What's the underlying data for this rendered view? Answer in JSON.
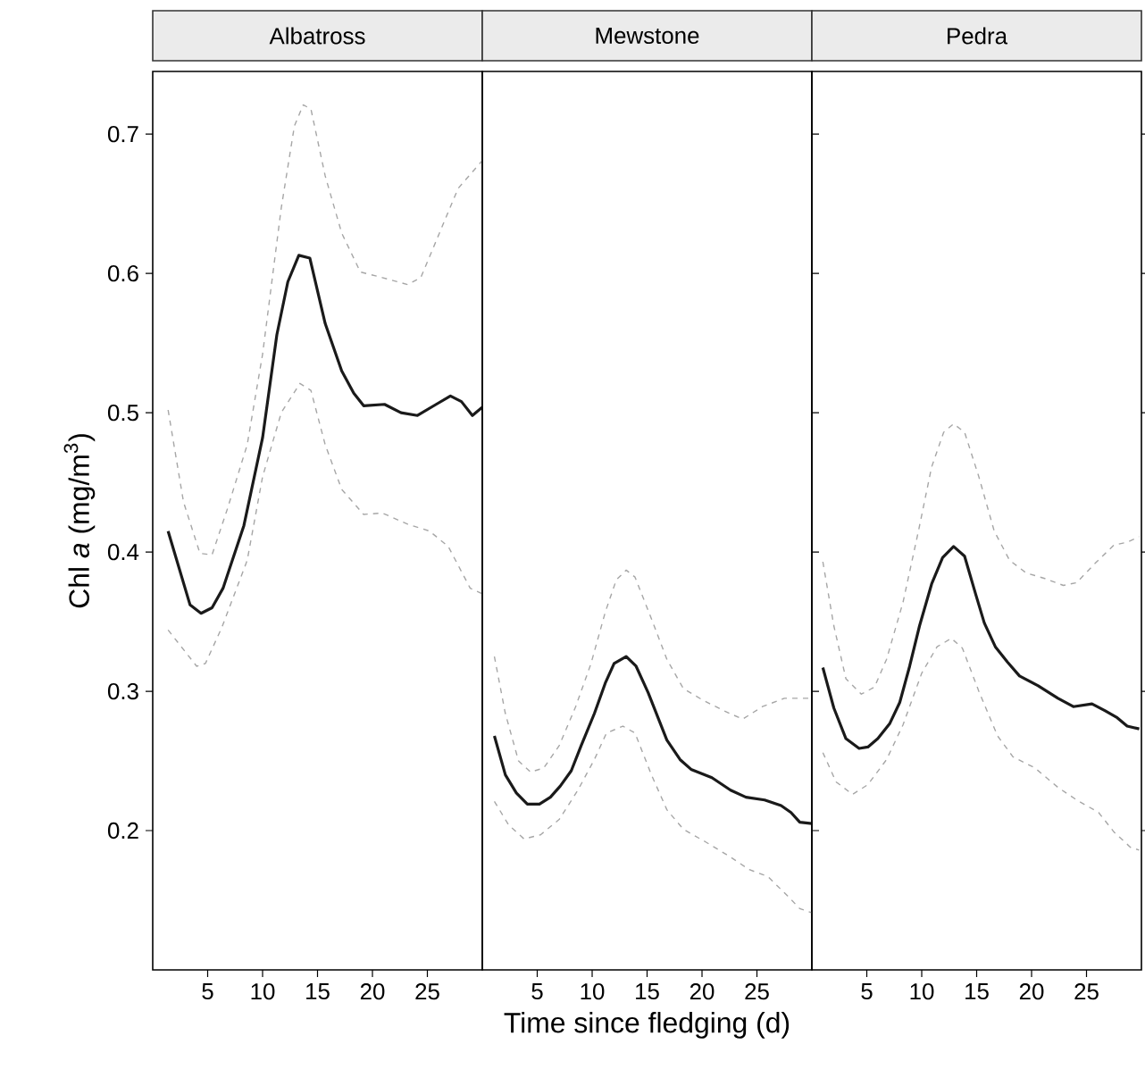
{
  "chart_data": [
    {
      "type": "line",
      "title": "Albatross",
      "ylabel": "Chl *a* (mg/m$^{3}$)",
      "xlim": [
        0,
        30
      ],
      "xticks": [
        5,
        10,
        15,
        20,
        25
      ],
      "ylim": [
        0.1,
        0.745
      ],
      "yticks": [
        0.2,
        0.3,
        0.4,
        0.5,
        0.6,
        0.7
      ],
      "grid": false,
      "series": [
        {
          "color": "#1a1a1a",
          "line_style": "solid",
          "x": [
            1.4,
            3.4,
            4.4,
            5.4,
            6.4,
            8.3,
            10,
            11.3,
            12.3,
            13.3,
            14.3,
            15.7,
            17.2,
            18.3,
            19.2,
            21.1,
            22.6,
            24.1,
            25.8,
            27.1,
            28.1,
            29.1,
            30
          ],
          "values": [
            0.415,
            0.362,
            0.356,
            0.36,
            0.374,
            0.419,
            0.482,
            0.556,
            0.594,
            0.613,
            0.611,
            0.564,
            0.53,
            0.514,
            0.505,
            0.506,
            0.5,
            0.498,
            0.506,
            0.512,
            0.508,
            0.498,
            0.504
          ]
        },
        {
          "color": "#a6a6a6",
          "line_style": "dashed",
          "x": [
            1.4,
            2.8,
            4.3,
            5.4,
            6.8,
            8.6,
            10,
            11.7,
            12.9,
            13.7,
            14.4,
            15.7,
            17.2,
            18.9,
            20.9,
            23.2,
            24.4,
            26.1,
            27.8,
            30
          ],
          "values": [
            0.502,
            0.436,
            0.399,
            0.398,
            0.431,
            0.477,
            0.542,
            0.647,
            0.706,
            0.721,
            0.718,
            0.67,
            0.629,
            0.601,
            0.597,
            0.592,
            0.597,
            0.629,
            0.661,
            0.681
          ]
        },
        {
          "color": "#a6a6a6",
          "line_style": "dashed",
          "x": [
            1.4,
            4.0,
            4.8,
            6.3,
            8.6,
            10,
            11.7,
            13.4,
            14.4,
            15.7,
            17.2,
            19.2,
            20.9,
            23.2,
            25.2,
            26.9,
            28.9,
            30
          ],
          "values": [
            0.344,
            0.318,
            0.32,
            0.346,
            0.394,
            0.454,
            0.5,
            0.521,
            0.516,
            0.477,
            0.445,
            0.427,
            0.428,
            0.42,
            0.415,
            0.404,
            0.374,
            0.37
          ]
        }
      ]
    },
    {
      "type": "line",
      "title": "Mewstone",
      "xlabel": "Time since fledging (d)",
      "xlim": [
        0,
        30
      ],
      "xticks": [
        5,
        10,
        15,
        20,
        25
      ],
      "ylim": [
        0.1,
        0.745
      ],
      "yticks": [
        0.2,
        0.3,
        0.4,
        0.5,
        0.6,
        0.7
      ],
      "tick_labels": "x",
      "grid": false,
      "series": [
        {
          "color": "#1a1a1a",
          "line_style": "solid",
          "x": [
            1.1,
            2.1,
            3.1,
            4.1,
            5.2,
            6.2,
            7.1,
            8.1,
            9.0,
            10.2,
            11.2,
            12.0,
            13.1,
            14.0,
            15.1,
            16.8,
            18.0,
            19.0,
            20.9,
            22.6,
            24.0,
            25.7,
            27.2,
            28.1,
            28.9,
            30
          ],
          "values": [
            0.268,
            0.24,
            0.227,
            0.219,
            0.219,
            0.224,
            0.232,
            0.243,
            0.261,
            0.284,
            0.306,
            0.32,
            0.325,
            0.318,
            0.299,
            0.265,
            0.251,
            0.244,
            0.238,
            0.229,
            0.224,
            0.222,
            0.218,
            0.213,
            0.206,
            0.205
          ]
        },
        {
          "color": "#a6a6a6",
          "line_style": "dashed",
          "x": [
            1.1,
            2.1,
            3.3,
            4.4,
            5.6,
            7.0,
            8.5,
            9.9,
            11.2,
            12.2,
            13.1,
            13.9,
            15.4,
            16.8,
            18.3,
            20,
            22.0,
            23.7,
            25.5,
            27.5,
            30
          ],
          "values": [
            0.325,
            0.284,
            0.25,
            0.242,
            0.245,
            0.261,
            0.289,
            0.32,
            0.357,
            0.38,
            0.387,
            0.382,
            0.352,
            0.323,
            0.302,
            0.294,
            0.286,
            0.28,
            0.289,
            0.295,
            0.295
          ]
        },
        {
          "color": "#a6a6a6",
          "line_style": "dashed",
          "x": [
            1.1,
            2.4,
            3.8,
            5.3,
            7.0,
            8.7,
            10.2,
            11.3,
            12.8,
            13.9,
            15.4,
            16.8,
            18.3,
            20.3,
            22.6,
            24.3,
            26.0,
            27.8,
            28.9,
            30
          ],
          "values": [
            0.221,
            0.204,
            0.194,
            0.197,
            0.208,
            0.229,
            0.251,
            0.27,
            0.275,
            0.27,
            0.24,
            0.215,
            0.201,
            0.192,
            0.181,
            0.172,
            0.167,
            0.153,
            0.144,
            0.141
          ]
        }
      ]
    },
    {
      "type": "line",
      "title": "Pedra",
      "xlim": [
        0,
        30
      ],
      "xticks": [
        5,
        10,
        15,
        20,
        25
      ],
      "ylim": [
        0.1,
        0.745
      ],
      "yticks": [
        0.2,
        0.3,
        0.4,
        0.5,
        0.6,
        0.7
      ],
      "tick_labels": "x",
      "grid": false,
      "series": [
        {
          "color": "#1a1a1a",
          "line_style": "solid",
          "x": [
            1.0,
            2.0,
            3.1,
            4.3,
            5.1,
            6.0,
            7.1,
            8.0,
            8.9,
            9.8,
            10.9,
            11.9,
            12.9,
            13.9,
            14.9,
            15.7,
            16.7,
            17.8,
            18.9,
            20.6,
            22.4,
            23.8,
            25.5,
            26.7,
            27.8,
            28.7,
            29.8
          ],
          "values": [
            0.317,
            0.288,
            0.266,
            0.259,
            0.26,
            0.266,
            0.277,
            0.292,
            0.318,
            0.347,
            0.377,
            0.396,
            0.404,
            0.397,
            0.37,
            0.349,
            0.332,
            0.321,
            0.311,
            0.304,
            0.295,
            0.289,
            0.291,
            0.286,
            0.281,
            0.275,
            0.273
          ]
        },
        {
          "color": "#a6a6a6",
          "line_style": "dashed",
          "x": [
            1.0,
            2.0,
            3.1,
            4.5,
            5.7,
            6.8,
            8.3,
            9.7,
            10.9,
            12.0,
            12.9,
            13.9,
            15.2,
            16.6,
            18.0,
            19.5,
            21.2,
            22.9,
            24.1,
            25.8,
            27.5,
            28.7,
            29.8
          ],
          "values": [
            0.393,
            0.347,
            0.309,
            0.298,
            0.303,
            0.323,
            0.364,
            0.415,
            0.461,
            0.486,
            0.492,
            0.486,
            0.454,
            0.415,
            0.394,
            0.385,
            0.381,
            0.376,
            0.378,
            0.392,
            0.405,
            0.407,
            0.411
          ]
        },
        {
          "color": "#a6a6a6",
          "line_style": "dashed",
          "x": [
            1.0,
            2.2,
            3.7,
            5.1,
            6.8,
            8.3,
            10,
            11.4,
            12.7,
            13.7,
            15.2,
            16.9,
            18.3,
            20.3,
            22.4,
            24.1,
            26.1,
            27.5,
            29.0,
            29.8
          ],
          "values": [
            0.256,
            0.235,
            0.226,
            0.233,
            0.251,
            0.276,
            0.313,
            0.332,
            0.338,
            0.331,
            0.3,
            0.268,
            0.253,
            0.245,
            0.231,
            0.222,
            0.213,
            0.199,
            0.188,
            0.186
          ]
        }
      ]
    }
  ]
}
